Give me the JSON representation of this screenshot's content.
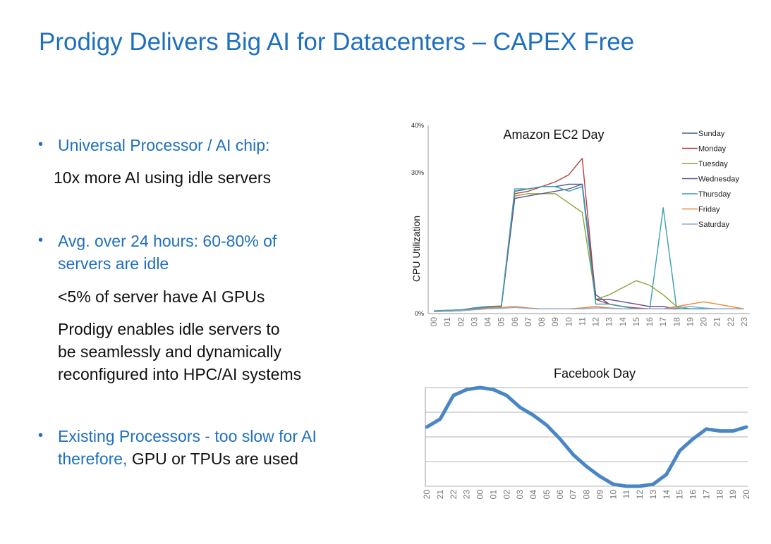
{
  "slide": {
    "title": "Prodigy Delivers Big AI for Datacenters – CAPEX Free",
    "bullets": [
      {
        "lines": [
          "Universal Processor / AI chip:"
        ],
        "sub": [
          [
            "10x more AI using idle servers"
          ]
        ]
      },
      {
        "lines": [
          "Avg. over 24 hours: 60-80% of",
          "servers are idle"
        ],
        "sub": [
          [
            "<5% of server have AI GPUs"
          ],
          [
            "Prodigy enables idle servers to",
            "be seamlessly and dynamically",
            "reconfigured into HPC/AI systems"
          ]
        ]
      },
      {
        "lines": [
          "Existing Processors - too slow for AI",
          "therefore, GPU or TPUs are used"
        ],
        "highlight_prefix": "therefore,",
        "sub": []
      }
    ]
  },
  "colors": {
    "title": "#1f6fbf",
    "text": "#111111",
    "Sunday": "#3a5f94",
    "Monday": "#b5403e",
    "Tuesday": "#86a93a",
    "Wednesday": "#6a4e94",
    "Thursday": "#3a9fae",
    "Friday": "#e98c37",
    "Saturday": "#8ea8d4",
    "facebook": "#4a86c6"
  },
  "chart_data": [
    {
      "type": "line",
      "title": "Amazon EC2 Day",
      "ylabel": "CPU Utilization",
      "ytick_labels": [
        "0%",
        "30%",
        "40%"
      ],
      "ylim": [
        0,
        40
      ],
      "x": [
        "00",
        "01",
        "02",
        "03",
        "04",
        "05",
        "06",
        "07",
        "08",
        "09",
        "10",
        "11",
        "12",
        "13",
        "14",
        "15",
        "16",
        "17",
        "18",
        "19",
        "20",
        "21",
        "22",
        "23"
      ],
      "legend_position": "top-right",
      "series": [
        {
          "name": "Sunday",
          "values": [
            0.5,
            0.7,
            0.8,
            1.2,
            1.5,
            1.6,
            26,
            26.5,
            27,
            27,
            27.5,
            27.5,
            4,
            2,
            1.5,
            1,
            1,
            1,
            1,
            1,
            1,
            1,
            1,
            1
          ]
        },
        {
          "name": "Monday",
          "values": [
            0.4,
            0.5,
            0.6,
            1,
            1.3,
            1.5,
            25.5,
            26,
            27,
            28,
            29.5,
            33,
            3,
            2,
            1.5,
            1.2,
            1,
            1,
            1,
            1,
            1,
            1,
            1,
            1
          ]
        },
        {
          "name": "Tuesday",
          "values": [
            0.5,
            0.6,
            0.7,
            1.1,
            1.4,
            1.5,
            25,
            25.5,
            25.5,
            25.5,
            23.5,
            21.5,
            3,
            4,
            5.5,
            7,
            6,
            4,
            1.5,
            1,
            1,
            1,
            1,
            1
          ]
        },
        {
          "name": "Wednesday",
          "values": [
            0.5,
            0.6,
            0.6,
            1,
            1.3,
            1.4,
            24.5,
            25,
            25.5,
            26,
            26.5,
            27.5,
            3,
            3,
            2.5,
            2,
            1.5,
            1.5,
            1,
            1,
            1,
            1,
            1,
            1
          ]
        },
        {
          "name": "Thursday",
          "values": [
            0.6,
            0.7,
            0.8,
            1.2,
            1.5,
            1.6,
            26.5,
            26.5,
            27,
            27,
            26,
            27,
            2,
            2,
            1.5,
            1,
            1,
            22.5,
            1,
            1,
            1,
            1,
            1,
            1
          ]
        },
        {
          "name": "Friday",
          "values": [
            0.5,
            0.5,
            0.6,
            0.9,
            1.2,
            1.3,
            1.5,
            1.2,
            1,
            1,
            1,
            1.2,
            1.5,
            1.2,
            1,
            1,
            1,
            1,
            1.5,
            2,
            2.5,
            2,
            1.5,
            1
          ]
        },
        {
          "name": "Saturday",
          "values": [
            0.4,
            0.5,
            0.6,
            0.8,
            1,
            1.1,
            1.3,
            1.1,
            1,
            1,
            1,
            1,
            1.2,
            1.1,
            1,
            1,
            1,
            1,
            1.2,
            1.5,
            1.2,
            1,
            1,
            1
          ]
        }
      ]
    },
    {
      "type": "line",
      "title": "Facebook Day",
      "x": [
        "20",
        "21",
        "22",
        "23",
        "00",
        "01",
        "02",
        "03",
        "04",
        "05",
        "06",
        "07",
        "08",
        "09",
        "10",
        "11",
        "12",
        "13",
        "14",
        "15",
        "16",
        "17",
        "18",
        "19",
        "20"
      ],
      "ylim": [
        0,
        5
      ],
      "gridlines": 4,
      "series": [
        {
          "values": [
            3.0,
            3.4,
            4.6,
            4.9,
            5.0,
            4.9,
            4.6,
            4.0,
            3.6,
            3.1,
            2.4,
            1.6,
            1.0,
            0.5,
            0.1,
            0.0,
            0.0,
            0.1,
            0.6,
            1.8,
            2.4,
            2.9,
            2.8,
            2.8,
            3.0
          ]
        }
      ]
    }
  ]
}
